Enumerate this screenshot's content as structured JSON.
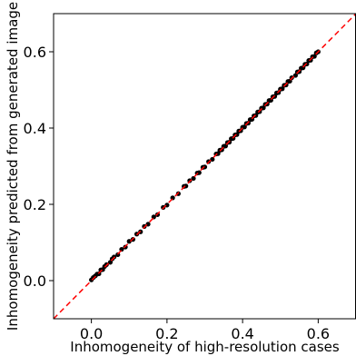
{
  "chart_data": {
    "type": "scatter",
    "xlabel": "Inhomogeneity of high-resolution cases",
    "ylabel": "Inhomogeneity predicted from generated image",
    "xlim": [
      -0.1,
      0.7
    ],
    "ylim": [
      -0.1,
      0.7
    ],
    "xticks": [
      "0.0",
      "0.2",
      "0.4",
      "0.6"
    ],
    "yticks": [
      "0.0",
      "0.2",
      "0.4",
      "0.6"
    ],
    "grid": false,
    "reference_line": {
      "type": "identity",
      "color": "#ff0000",
      "style": "dashed"
    },
    "marker_color": "#000000",
    "series": [
      {
        "x": [
          0.0,
          0.005,
          0.01,
          0.015,
          0.02,
          0.025,
          0.03,
          0.035,
          0.04,
          0.05,
          0.055,
          0.06,
          0.07,
          0.08,
          0.09,
          0.1,
          0.11,
          0.12,
          0.13,
          0.14,
          0.15,
          0.165,
          0.175,
          0.19,
          0.2,
          0.215,
          0.23,
          0.245,
          0.25,
          0.26,
          0.27,
          0.28,
          0.285,
          0.295,
          0.3,
          0.31,
          0.32,
          0.33,
          0.335,
          0.34,
          0.345,
          0.35,
          0.355,
          0.36,
          0.365,
          0.37,
          0.375,
          0.38,
          0.385,
          0.39,
          0.395,
          0.4,
          0.405,
          0.41,
          0.415,
          0.42,
          0.425,
          0.43,
          0.435,
          0.44,
          0.445,
          0.45,
          0.455,
          0.46,
          0.465,
          0.47,
          0.475,
          0.48,
          0.485,
          0.49,
          0.495,
          0.5,
          0.505,
          0.51,
          0.515,
          0.52,
          0.525,
          0.53,
          0.54,
          0.545,
          0.55,
          0.555,
          0.56,
          0.565,
          0.57,
          0.575,
          0.58,
          0.585,
          0.59,
          0.595,
          0.6
        ],
        "y": [
          0.002,
          0.008,
          0.012,
          0.017,
          0.018,
          0.028,
          0.029,
          0.037,
          0.042,
          0.048,
          0.057,
          0.062,
          0.068,
          0.082,
          0.088,
          0.103,
          0.108,
          0.122,
          0.128,
          0.142,
          0.148,
          0.167,
          0.173,
          0.192,
          0.198,
          0.217,
          0.228,
          0.247,
          0.248,
          0.262,
          0.268,
          0.282,
          0.283,
          0.297,
          0.298,
          0.312,
          0.318,
          0.332,
          0.333,
          0.342,
          0.343,
          0.352,
          0.353,
          0.362,
          0.363,
          0.372,
          0.373,
          0.382,
          0.383,
          0.392,
          0.393,
          0.402,
          0.403,
          0.412,
          0.413,
          0.422,
          0.423,
          0.432,
          0.433,
          0.442,
          0.443,
          0.452,
          0.453,
          0.462,
          0.463,
          0.472,
          0.473,
          0.482,
          0.483,
          0.492,
          0.493,
          0.502,
          0.503,
          0.512,
          0.513,
          0.522,
          0.523,
          0.532,
          0.538,
          0.547,
          0.548,
          0.557,
          0.558,
          0.567,
          0.568,
          0.577,
          0.578,
          0.587,
          0.588,
          0.597,
          0.6
        ]
      }
    ]
  }
}
